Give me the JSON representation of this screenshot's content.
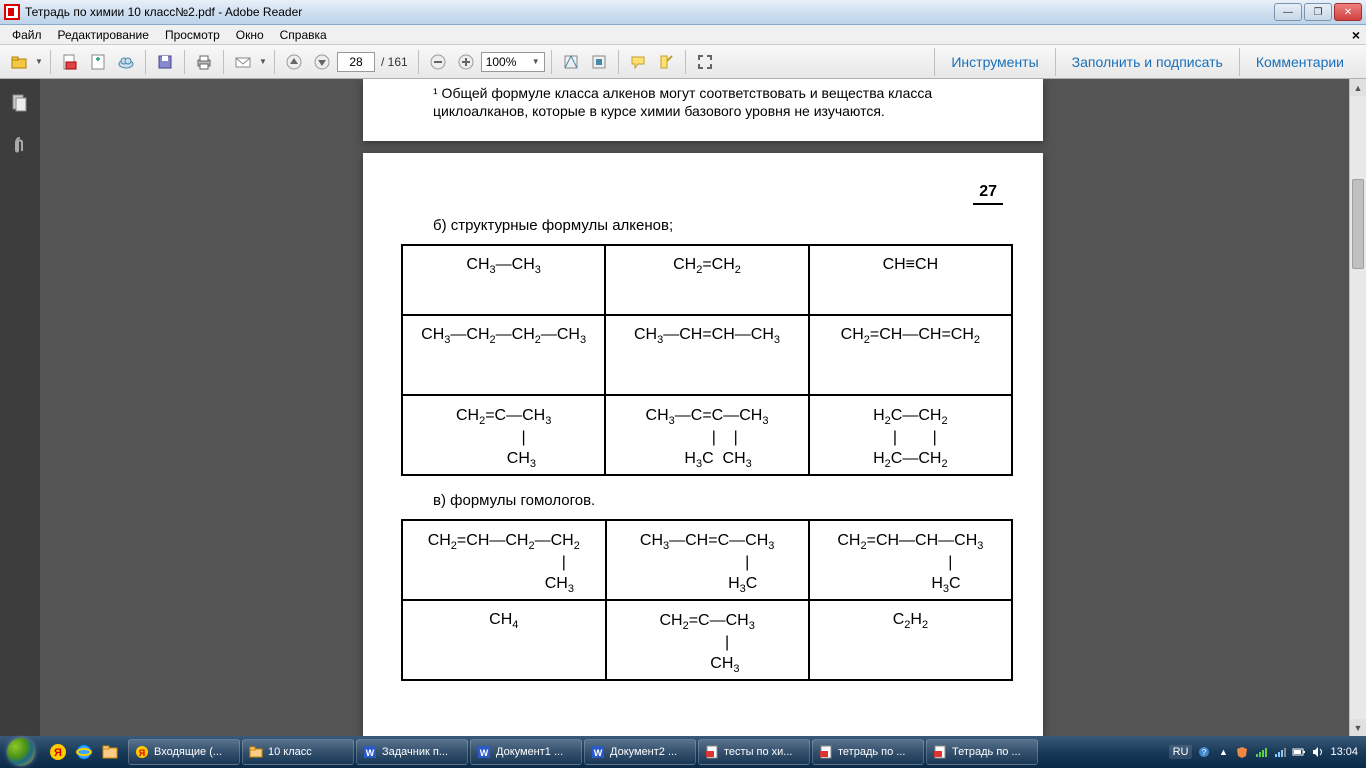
{
  "window": {
    "title": "Тетрадь по химии 10 класс№2.pdf - Adobe Reader"
  },
  "menu": {
    "items": [
      "Файл",
      "Редактирование",
      "Просмотр",
      "Окно",
      "Справка"
    ]
  },
  "toolbar": {
    "page_current": "28",
    "page_total": "/ 161",
    "zoom": "100%",
    "right_tabs": [
      "Инструменты",
      "Заполнить и подписать",
      "Комментарии"
    ]
  },
  "document": {
    "footnote": "¹ Общей формуле класса алкенов могут соответствовать и вещества класса циклоалканов, которые в курсе химии базового уровня не изучаются.",
    "page_number": "27",
    "section_b": "б) структурные формулы алкенов;",
    "section_v": "в) формулы гомологов.",
    "table_b": [
      [
        "CH₃—CH₃",
        "CH₂=CH₂",
        "CH≡CH"
      ],
      [
        "CH₃—CH₂—CH₂—CH₃",
        "CH₃—CH=CH—CH₃",
        "CH₂=CH—CH=CH₂"
      ],
      [
        "CH₂=C—CH₃\n        |\n       CH₃",
        "CH₃—C=C—CH₃\n        |     |\n      H₃C  CH₃",
        "H₂C—CH₂\n   |        |\nH₂C—CH₂"
      ]
    ],
    "table_v": [
      [
        "CH₂=CH—CH₂—CH₂\n                        |\n                      CH₃",
        "CH₃—CH=C—CH₃\n                  |\n                H₃C",
        "CH₂=CH—CH—CH₃\n                  |\n                H₃C"
      ],
      [
        "CH₄",
        "CH₂=C—CH₃\n          |\n        CH₃",
        "C₂H₂"
      ]
    ]
  },
  "taskbar": {
    "items": [
      {
        "icon": "yandex",
        "label": "Входящие (..."
      },
      {
        "icon": "folder",
        "label": "10 класс"
      },
      {
        "icon": "word",
        "label": "Задачник п..."
      },
      {
        "icon": "word",
        "label": "Документ1 ..."
      },
      {
        "icon": "word",
        "label": "Документ2 ..."
      },
      {
        "icon": "pdf",
        "label": "тесты по хи..."
      },
      {
        "icon": "pdf",
        "label": "тетрадь по ..."
      },
      {
        "icon": "pdf",
        "label": "Тетрадь по ..."
      }
    ],
    "lang": "RU",
    "time": "13:04"
  },
  "colors": {
    "titlebar_grad": [
      "#e8f0f8",
      "#bcd4ea"
    ],
    "doc_bg": "#545454",
    "page_bg": "#ffffff",
    "link_blue": "#1a6fb8",
    "taskbar_grad": [
      "#3a5a7a",
      "#0a2a4a"
    ]
  }
}
